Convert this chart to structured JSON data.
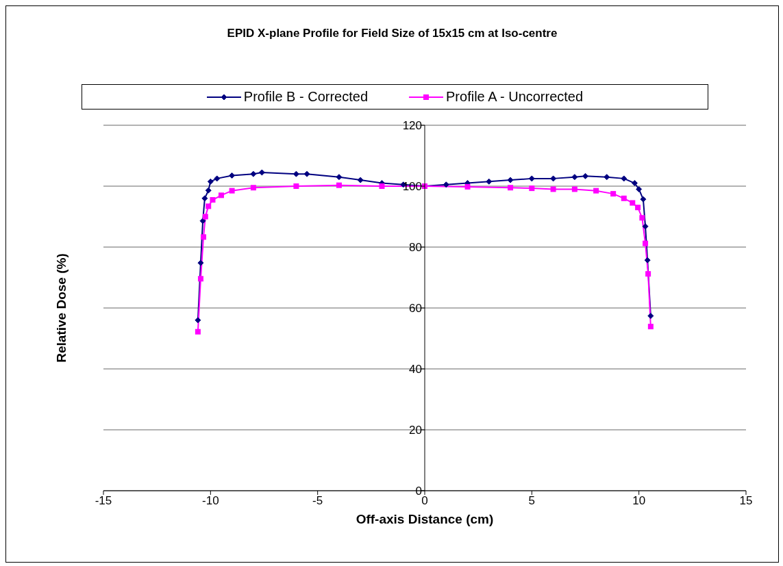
{
  "chart_data": {
    "type": "line",
    "title": "EPID X-plane Profile for Field Size of 15x15 cm at Iso-centre",
    "xlabel": "Off-axis Distance (cm)",
    "ylabel": "Relative Dose (%)",
    "xlim": [
      -15,
      15
    ],
    "xticks": [
      -15,
      -10,
      -5,
      0,
      5,
      10,
      15
    ],
    "ylim": [
      0,
      120
    ],
    "yticks": [
      0,
      20,
      40,
      60,
      80,
      100,
      120
    ],
    "grid": "y",
    "legend": "top",
    "series": [
      {
        "name": "Profile B - Corrected",
        "color": "#000080",
        "marker": "diamond",
        "x": [
          -10.59,
          -10.46,
          -10.36,
          -10.27,
          -10.1,
          -10.0,
          -9.7,
          -9.0,
          -8.0,
          -7.6,
          -6.0,
          -5.5,
          -4.0,
          -3.0,
          -2.0,
          -1.0,
          0,
          1.0,
          2.0,
          3.0,
          4.0,
          5.0,
          6.0,
          7.0,
          7.5,
          8.5,
          9.3,
          9.8,
          10.0,
          10.2,
          10.3,
          10.4,
          10.55
        ],
        "values": [
          56,
          74.8,
          88.6,
          96,
          98.6,
          101.5,
          102.5,
          103.5,
          104,
          104.5,
          104,
          104,
          103,
          102,
          101,
          100.5,
          100,
          100.5,
          101,
          101.5,
          102,
          102.5,
          102.5,
          103,
          103.3,
          103,
          102.5,
          101,
          99,
          95.7,
          86.8,
          75.7,
          57.4
        ]
      },
      {
        "name": "Profile A - Uncorrected",
        "color": "#ff00ff",
        "marker": "square",
        "x": [
          -10.59,
          -10.46,
          -10.33,
          -10.24,
          -10.1,
          -9.9,
          -9.5,
          -9.0,
          -8.0,
          -6.0,
          -4.0,
          -2.0,
          0,
          2.0,
          4.0,
          5.0,
          6.0,
          7.0,
          8.0,
          8.8,
          9.3,
          9.7,
          9.95,
          10.15,
          10.3,
          10.43,
          10.55
        ],
        "values": [
          52.2,
          69.6,
          83.3,
          90,
          93.4,
          95.5,
          97,
          98.5,
          99.5,
          100,
          100.3,
          100,
          100,
          99.8,
          99.5,
          99.3,
          99,
          99,
          98.5,
          97.5,
          96,
          94.5,
          93,
          89.6,
          81.2,
          71.2,
          53.9
        ]
      }
    ]
  }
}
